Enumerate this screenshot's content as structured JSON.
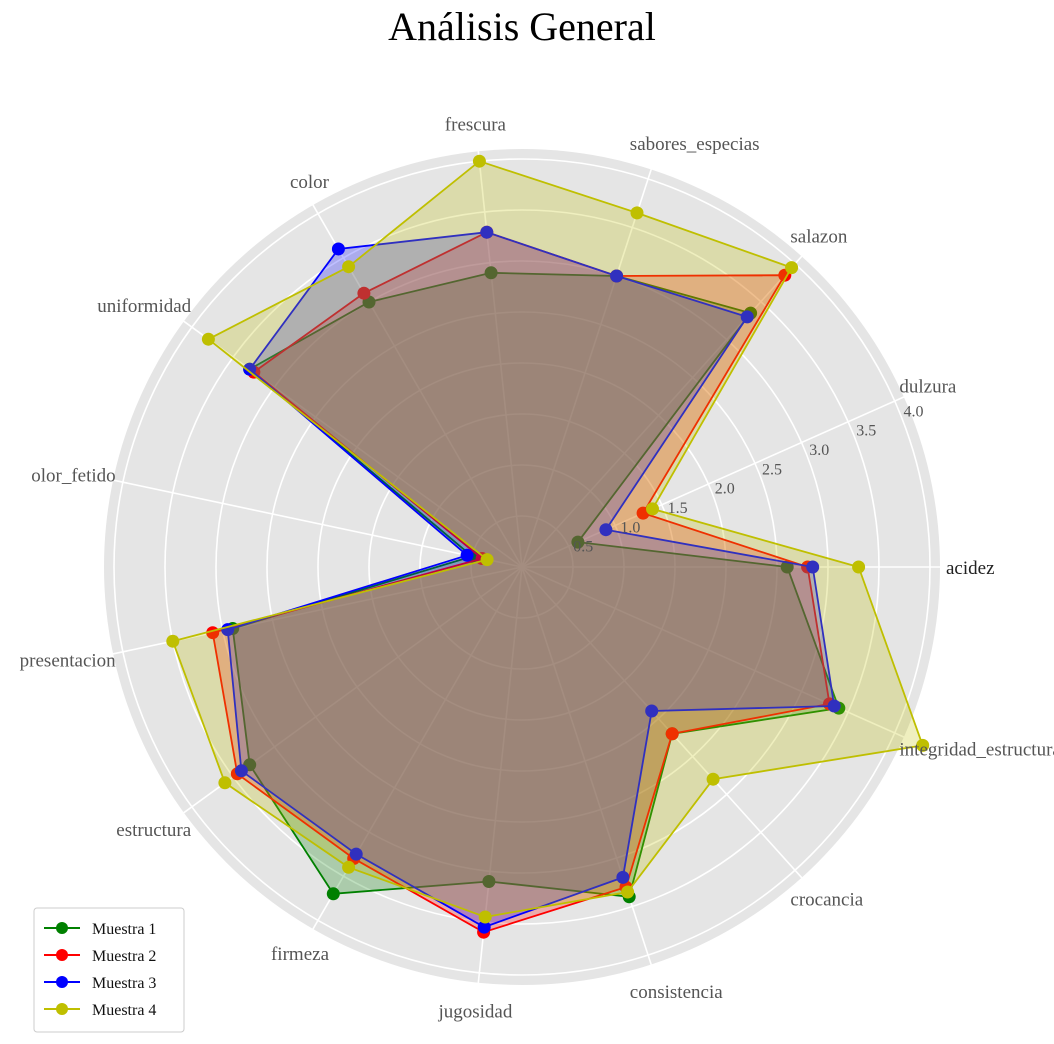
{
  "chart_data": {
    "type": "radar",
    "title": "Análisis General",
    "categories": [
      "acidez",
      "dulzura",
      "salazon",
      "sabores_especias",
      "frescura",
      "color",
      "uniformidad",
      "olor_fetido",
      "presentacion",
      "estructura",
      "firmeza",
      "jugosidad",
      "consistencia",
      "crocancia",
      "integridad_estructural"
    ],
    "rticks": [
      "0.5",
      "1.0",
      "1.5",
      "2.0",
      "2.5",
      "3.0",
      "3.5",
      "4.0"
    ],
    "rticks_values": [
      0.5,
      1.0,
      1.5,
      2.0,
      2.5,
      3.0,
      3.5,
      4.0
    ],
    "rlim": [
      0,
      4.0
    ],
    "grid": true,
    "legend_position": "lower-left",
    "series": [
      {
        "name": "Muestra 1",
        "color": "#008000",
        "values": [
          2.6,
          0.6,
          3.35,
          3.0,
          2.9,
          3.0,
          3.3,
          0.5,
          2.9,
          3.3,
          3.7,
          3.1,
          3.4,
          2.2,
          3.4
        ]
      },
      {
        "name": "Muestra 2",
        "color": "#ff0000",
        "values": [
          2.8,
          1.3,
          3.85,
          3.0,
          3.3,
          3.1,
          3.25,
          0.4,
          3.1,
          3.45,
          3.3,
          3.6,
          3.3,
          2.2,
          3.3
        ]
      },
      {
        "name": "Muestra 3",
        "color": "#0000ff",
        "values": [
          2.85,
          0.9,
          3.3,
          3.0,
          3.3,
          3.6,
          3.3,
          0.55,
          2.95,
          3.4,
          3.25,
          3.55,
          3.2,
          1.9,
          3.35
        ]
      },
      {
        "name": "Muestra 4",
        "color": "#bfbf00",
        "values": [
          3.3,
          1.4,
          3.95,
          3.65,
          4.0,
          3.4,
          3.8,
          0.35,
          3.5,
          3.6,
          3.4,
          3.45,
          3.35,
          2.8,
          4.3
        ]
      }
    ]
  }
}
